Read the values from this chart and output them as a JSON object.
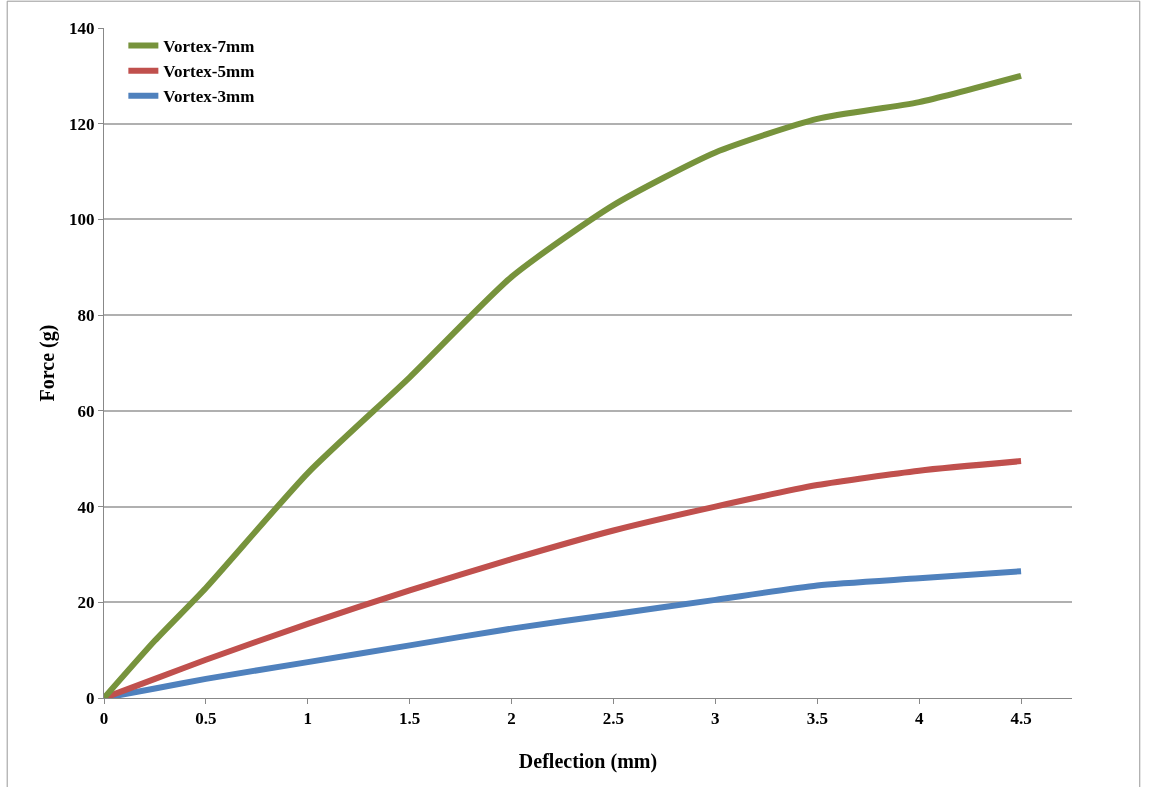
{
  "chart_data": {
    "type": "line",
    "xlabel": "Deflection (mm)",
    "ylabel": "Force (g)",
    "x": [
      0,
      0.25,
      0.5,
      1,
      1.5,
      2,
      2.5,
      3,
      3.5,
      4,
      4.5
    ],
    "series": [
      {
        "name": "Vortex-7mm",
        "color": "#77933c",
        "values": [
          0,
          12,
          23,
          47,
          67,
          88,
          103,
          114,
          121,
          124.5,
          130
        ]
      },
      {
        "name": "Vortex-5mm",
        "color": "#c0504d",
        "values": [
          0,
          4,
          8,
          15.5,
          22.5,
          29,
          35,
          40,
          44.5,
          47.5,
          49.5
        ]
      },
      {
        "name": "Vortex-3mm",
        "color": "#4f81bd",
        "values": [
          0,
          2,
          4,
          7.5,
          11,
          14.5,
          17.5,
          20.5,
          23.5,
          25,
          26.5
        ]
      }
    ],
    "xlim": [
      0,
      4.75
    ],
    "xticks": [
      0,
      0.5,
      1,
      1.5,
      2,
      2.5,
      3,
      3.5,
      4,
      4.5
    ],
    "ylim": [
      0,
      140
    ],
    "yticks": [
      0,
      20,
      40,
      60,
      80,
      100,
      120,
      140
    ],
    "grid": "y",
    "legend": "top left",
    "marker": "none",
    "line_style": "solid"
  }
}
